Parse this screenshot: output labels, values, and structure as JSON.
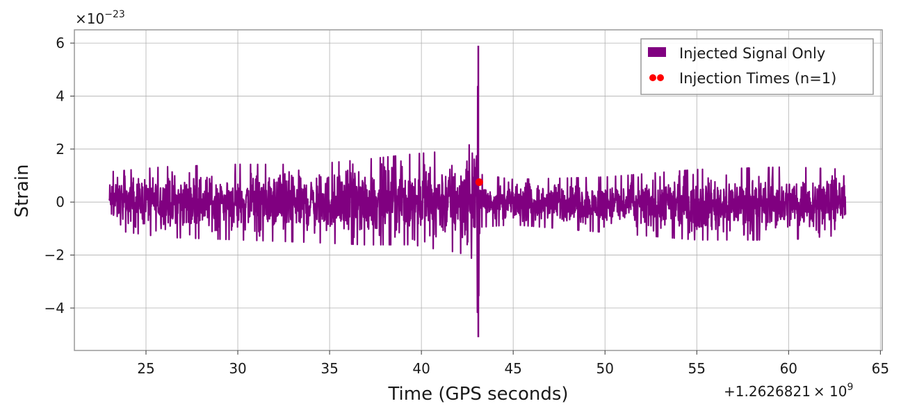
{
  "chart_data": {
    "type": "line",
    "xlabel": "Time (GPS seconds)",
    "ylabel": "Strain",
    "x_offset_label": "+1.2626821",
    "x_offset_multiplier": "× 10",
    "x_offset_exponent": "9",
    "y_scale_prefix": "×10",
    "y_scale_exponent": "−23",
    "xlim": [
      21.1,
      65.1
    ],
    "ylim": [
      -5.6,
      6.5
    ],
    "xticks": [
      25,
      30,
      35,
      40,
      45,
      50,
      55,
      60,
      65
    ],
    "xtick_labels": [
      "25",
      "30",
      "35",
      "40",
      "45",
      "50",
      "55",
      "60",
      "65"
    ],
    "yticks": [
      -4,
      -2,
      0,
      2,
      4,
      6
    ],
    "ytick_labels": [
      "−4",
      "−2",
      "0",
      "2",
      "4",
      "6"
    ],
    "grid": true,
    "legend_position": "top-right",
    "series": [
      {
        "name": "Injected Signal Only",
        "kind": "line",
        "color": "#800080",
        "x_range": [
          23.0,
          63.1
        ],
        "envelope": [
          {
            "x": 23.0,
            "upper": 1.2,
            "lower": -1.1
          },
          {
            "x": 26.0,
            "upper": 1.4,
            "lower": -1.4
          },
          {
            "x": 30.0,
            "upper": 1.5,
            "lower": -1.5
          },
          {
            "x": 34.0,
            "upper": 1.5,
            "lower": -1.6
          },
          {
            "x": 37.0,
            "upper": 1.7,
            "lower": -1.7
          },
          {
            "x": 39.5,
            "upper": 1.9,
            "lower": -1.7
          },
          {
            "x": 41.0,
            "upper": 2.0,
            "lower": -1.9
          },
          {
            "x": 42.0,
            "upper": 2.2,
            "lower": -2.0
          },
          {
            "x": 42.9,
            "upper": 2.9,
            "lower": -2.3
          },
          {
            "x": 43.1,
            "upper": 5.9,
            "lower": -5.1
          },
          {
            "x": 43.2,
            "upper": 1.1,
            "lower": -1.0
          },
          {
            "x": 45.0,
            "upper": 0.9,
            "lower": -0.9
          },
          {
            "x": 50.0,
            "upper": 1.0,
            "lower": -1.2
          },
          {
            "x": 55.0,
            "upper": 1.3,
            "lower": -1.5
          },
          {
            "x": 60.0,
            "upper": 1.4,
            "lower": -1.5
          },
          {
            "x": 63.1,
            "upper": 1.3,
            "lower": -1.3
          }
        ]
      },
      {
        "name": "Injection Times (n=1)",
        "kind": "scatter",
        "color": "#ff0000",
        "points": [
          {
            "x": 43.15,
            "y": 0.75
          }
        ]
      }
    ]
  }
}
